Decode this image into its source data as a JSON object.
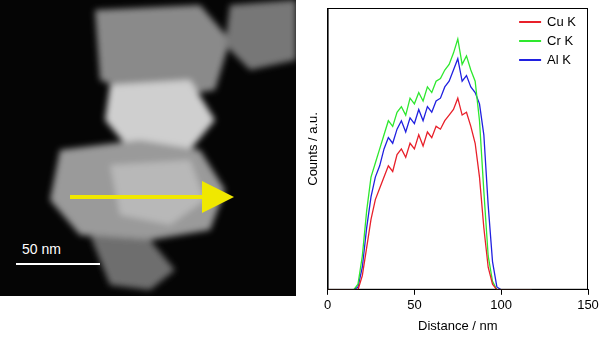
{
  "scale_bar": "50 nm",
  "chart_data": {
    "type": "line",
    "x_label": "Distance / nm",
    "y_label": "Counts / a.u.",
    "x": [
      0,
      2.5,
      5,
      7.5,
      10,
      12.5,
      15,
      17.5,
      20,
      22.5,
      25,
      27.5,
      30,
      32.5,
      35,
      37.5,
      40,
      42.5,
      45,
      47.5,
      50,
      52.5,
      55,
      57.5,
      60,
      62.5,
      65,
      67.5,
      70,
      72.5,
      75,
      77.5,
      80,
      82.5,
      85,
      87.5,
      90,
      92.5,
      95,
      97.5,
      100,
      102.5,
      105,
      107.5,
      110,
      112.5,
      115,
      117.5
    ],
    "series": [
      {
        "name": "Cu K",
        "color": "#e8202a",
        "values": [
          0,
          0,
          0,
          0,
          0,
          0,
          0,
          0,
          5,
          15,
          25,
          32,
          36,
          40,
          44,
          42,
          48,
          50,
          47,
          52,
          50,
          55,
          51,
          56,
          54,
          58,
          57,
          60,
          62,
          64,
          68,
          62,
          63,
          58,
          52,
          40,
          22,
          8,
          2,
          0,
          0,
          0,
          0,
          0,
          0,
          0,
          0,
          0
        ]
      },
      {
        "name": "Cr K",
        "color": "#2ee82e",
        "values": [
          0,
          0,
          0,
          0,
          0,
          0,
          0,
          2,
          12,
          28,
          40,
          45,
          50,
          55,
          60,
          58,
          63,
          65,
          62,
          68,
          66,
          70,
          67,
          72,
          70,
          74,
          75,
          78,
          80,
          84,
          89,
          80,
          83,
          78,
          74,
          60,
          35,
          12,
          3,
          0,
          0,
          0,
          0,
          0,
          0,
          0,
          0,
          0
        ]
      },
      {
        "name": "Al K",
        "color": "#2020e0",
        "values": [
          0,
          0,
          0,
          0,
          0,
          0,
          0,
          1,
          8,
          22,
          33,
          40,
          44,
          50,
          54,
          52,
          57,
          60,
          56,
          61,
          59,
          64,
          60,
          65,
          63,
          67,
          68,
          72,
          74,
          78,
          82,
          74,
          76,
          72,
          70,
          66,
          55,
          30,
          10,
          1,
          0,
          0,
          0,
          0,
          0,
          0,
          0,
          0
        ]
      }
    ],
    "xlim": [
      0,
      150
    ],
    "xticks": [
      0,
      50,
      100,
      150
    ],
    "ylim": [
      0,
      100
    ],
    "tick_labels": "x",
    "grid": false,
    "legend": "upper right"
  }
}
